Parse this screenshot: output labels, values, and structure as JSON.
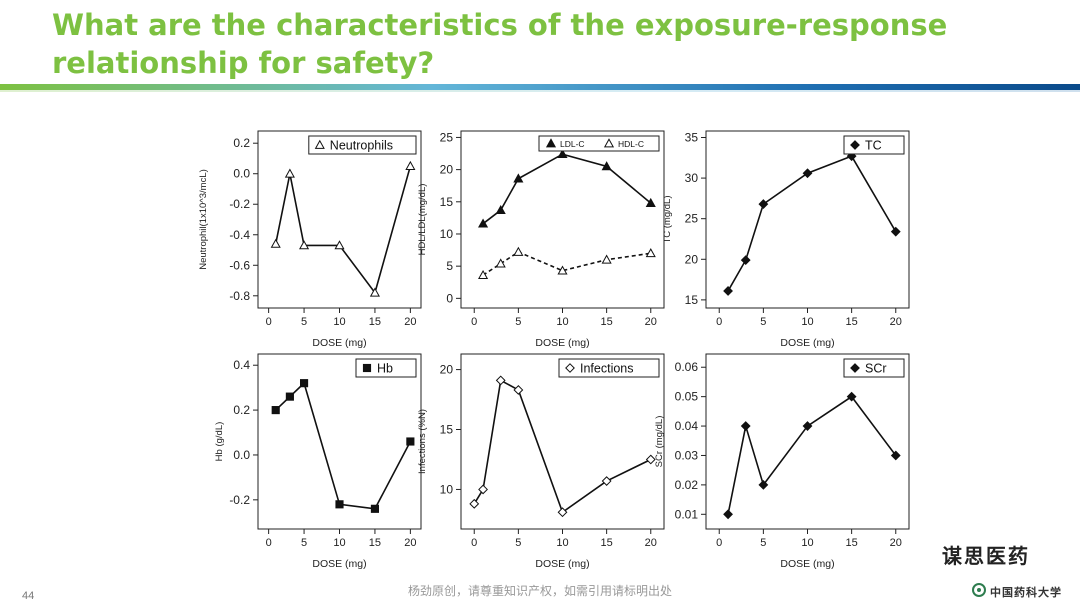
{
  "slide": {
    "title_line1": "What are the characteristics of the exposure-response",
    "title_line2": "relationship for safety?",
    "page_number": "44",
    "footer_text": "杨劲原创，请尊重知识产权，如需引用请标明出处",
    "brand_text": "谋思医药",
    "logo_text": "中国药科大学",
    "accent_color": "#7dc141"
  },
  "chart_data": [
    {
      "id": "neutrophils",
      "type": "line",
      "xlabel": "DOSE (mg)",
      "ylabel": "Neutrophil(1x10^3/mcL)",
      "xlim": [
        -1.5,
        21.5
      ],
      "ylim": [
        -0.88,
        0.28
      ],
      "xticks": [
        0,
        5,
        10,
        15,
        20
      ],
      "yticks": [
        -0.8,
        -0.6,
        -0.4,
        -0.2,
        0.0,
        0.2
      ],
      "ytick_labels": [
        "-0.8",
        "-0.6",
        "-0.4",
        "-0.2",
        "0.0",
        "0.2"
      ],
      "legend_position": "top-right",
      "series": [
        {
          "name": "Neutrophils",
          "marker": "triangle-open",
          "dash": "solid",
          "x": [
            1,
            3,
            5,
            10,
            15,
            20
          ],
          "y": [
            -0.46,
            0.0,
            -0.47,
            -0.47,
            -0.78,
            0.05
          ]
        }
      ]
    },
    {
      "id": "ldl-hdl",
      "type": "line",
      "xlabel": "DOSE (mg)",
      "ylabel": "HDL/LDL(mg/dL)",
      "xlim": [
        -1.5,
        21.5
      ],
      "ylim": [
        -1.5,
        26
      ],
      "xticks": [
        0,
        5,
        10,
        15,
        20
      ],
      "yticks": [
        0,
        5,
        10,
        15,
        20,
        25
      ],
      "ytick_labels": [
        "0",
        "5",
        "10",
        "15",
        "20",
        "25"
      ],
      "legend_position": "top-right",
      "series": [
        {
          "name": "LDL-C",
          "marker": "triangle-filled",
          "dash": "solid",
          "x": [
            1,
            3,
            5,
            10,
            15,
            20
          ],
          "y": [
            11.6,
            13.7,
            18.6,
            22.4,
            20.5,
            14.8
          ]
        },
        {
          "name": "HDL-C",
          "marker": "triangle-open",
          "dash": "dashed",
          "x": [
            1,
            3,
            5,
            10,
            15,
            20
          ],
          "y": [
            3.6,
            5.4,
            7.2,
            4.3,
            6.0,
            7.0
          ]
        }
      ]
    },
    {
      "id": "tc",
      "type": "line",
      "xlabel": "DOSE (mg)",
      "ylabel": "TC (mg/dL)",
      "xlim": [
        -1.5,
        21.5
      ],
      "ylim": [
        14,
        35.8
      ],
      "xticks": [
        0,
        5,
        10,
        15,
        20
      ],
      "yticks": [
        15,
        20,
        25,
        30,
        35
      ],
      "ytick_labels": [
        "15",
        "20",
        "25",
        "30",
        "35"
      ],
      "legend_position": "top-right",
      "series": [
        {
          "name": "TC",
          "marker": "diamond-filled",
          "dash": "solid",
          "x": [
            1,
            3,
            5,
            10,
            15,
            20
          ],
          "y": [
            16.1,
            19.9,
            26.8,
            30.6,
            32.7,
            23.4
          ]
        }
      ]
    },
    {
      "id": "hb",
      "type": "line",
      "xlabel": "DOSE (mg)",
      "ylabel": "Hb (g/dL)",
      "xlim": [
        -1.5,
        21.5
      ],
      "ylim": [
        -0.33,
        0.45
      ],
      "xticks": [
        0,
        5,
        10,
        15,
        20
      ],
      "yticks": [
        -0.2,
        0.0,
        0.2,
        0.4
      ],
      "ytick_labels": [
        "-0.2",
        "0.0",
        "0.2",
        "0.4"
      ],
      "legend_position": "top-right",
      "series": [
        {
          "name": "Hb",
          "marker": "square-filled",
          "dash": "solid",
          "x": [
            1,
            3,
            5,
            10,
            15,
            20
          ],
          "y": [
            0.2,
            0.26,
            0.32,
            -0.22,
            -0.24,
            0.06
          ]
        }
      ]
    },
    {
      "id": "infections",
      "type": "line",
      "xlabel": "DOSE (mg)",
      "ylabel": "Infections (%N)",
      "xlim": [
        -1.5,
        21.5
      ],
      "ylim": [
        6.7,
        21.3
      ],
      "xticks": [
        0,
        5,
        10,
        15,
        20
      ],
      "yticks": [
        10,
        15,
        20
      ],
      "ytick_labels": [
        "10",
        "15",
        "20"
      ],
      "legend_position": "top-right",
      "series": [
        {
          "name": "Infections",
          "marker": "diamond-open",
          "dash": "solid",
          "x": [
            0,
            1,
            3,
            5,
            10,
            15,
            20
          ],
          "y": [
            8.8,
            10.0,
            19.1,
            18.3,
            8.1,
            10.7,
            12.5
          ]
        }
      ]
    },
    {
      "id": "scr",
      "type": "line",
      "xlabel": "DOSE (mg)",
      "ylabel": "SCr (mg/dL)",
      "xlim": [
        -1.5,
        21.5
      ],
      "ylim": [
        0.005,
        0.0645
      ],
      "xticks": [
        0,
        5,
        10,
        15,
        20
      ],
      "yticks": [
        0.01,
        0.02,
        0.03,
        0.04,
        0.05,
        0.06
      ],
      "ytick_labels": [
        "0.01",
        "0.02",
        "0.03",
        "0.04",
        "0.05",
        "0.06"
      ],
      "legend_position": "top-right",
      "series": [
        {
          "name": "SCr",
          "marker": "diamond-filled",
          "dash": "solid",
          "x": [
            1,
            3,
            5,
            10,
            15,
            20
          ],
          "y": [
            0.01,
            0.04,
            0.02,
            0.04,
            0.05,
            0.03
          ]
        }
      ]
    }
  ]
}
